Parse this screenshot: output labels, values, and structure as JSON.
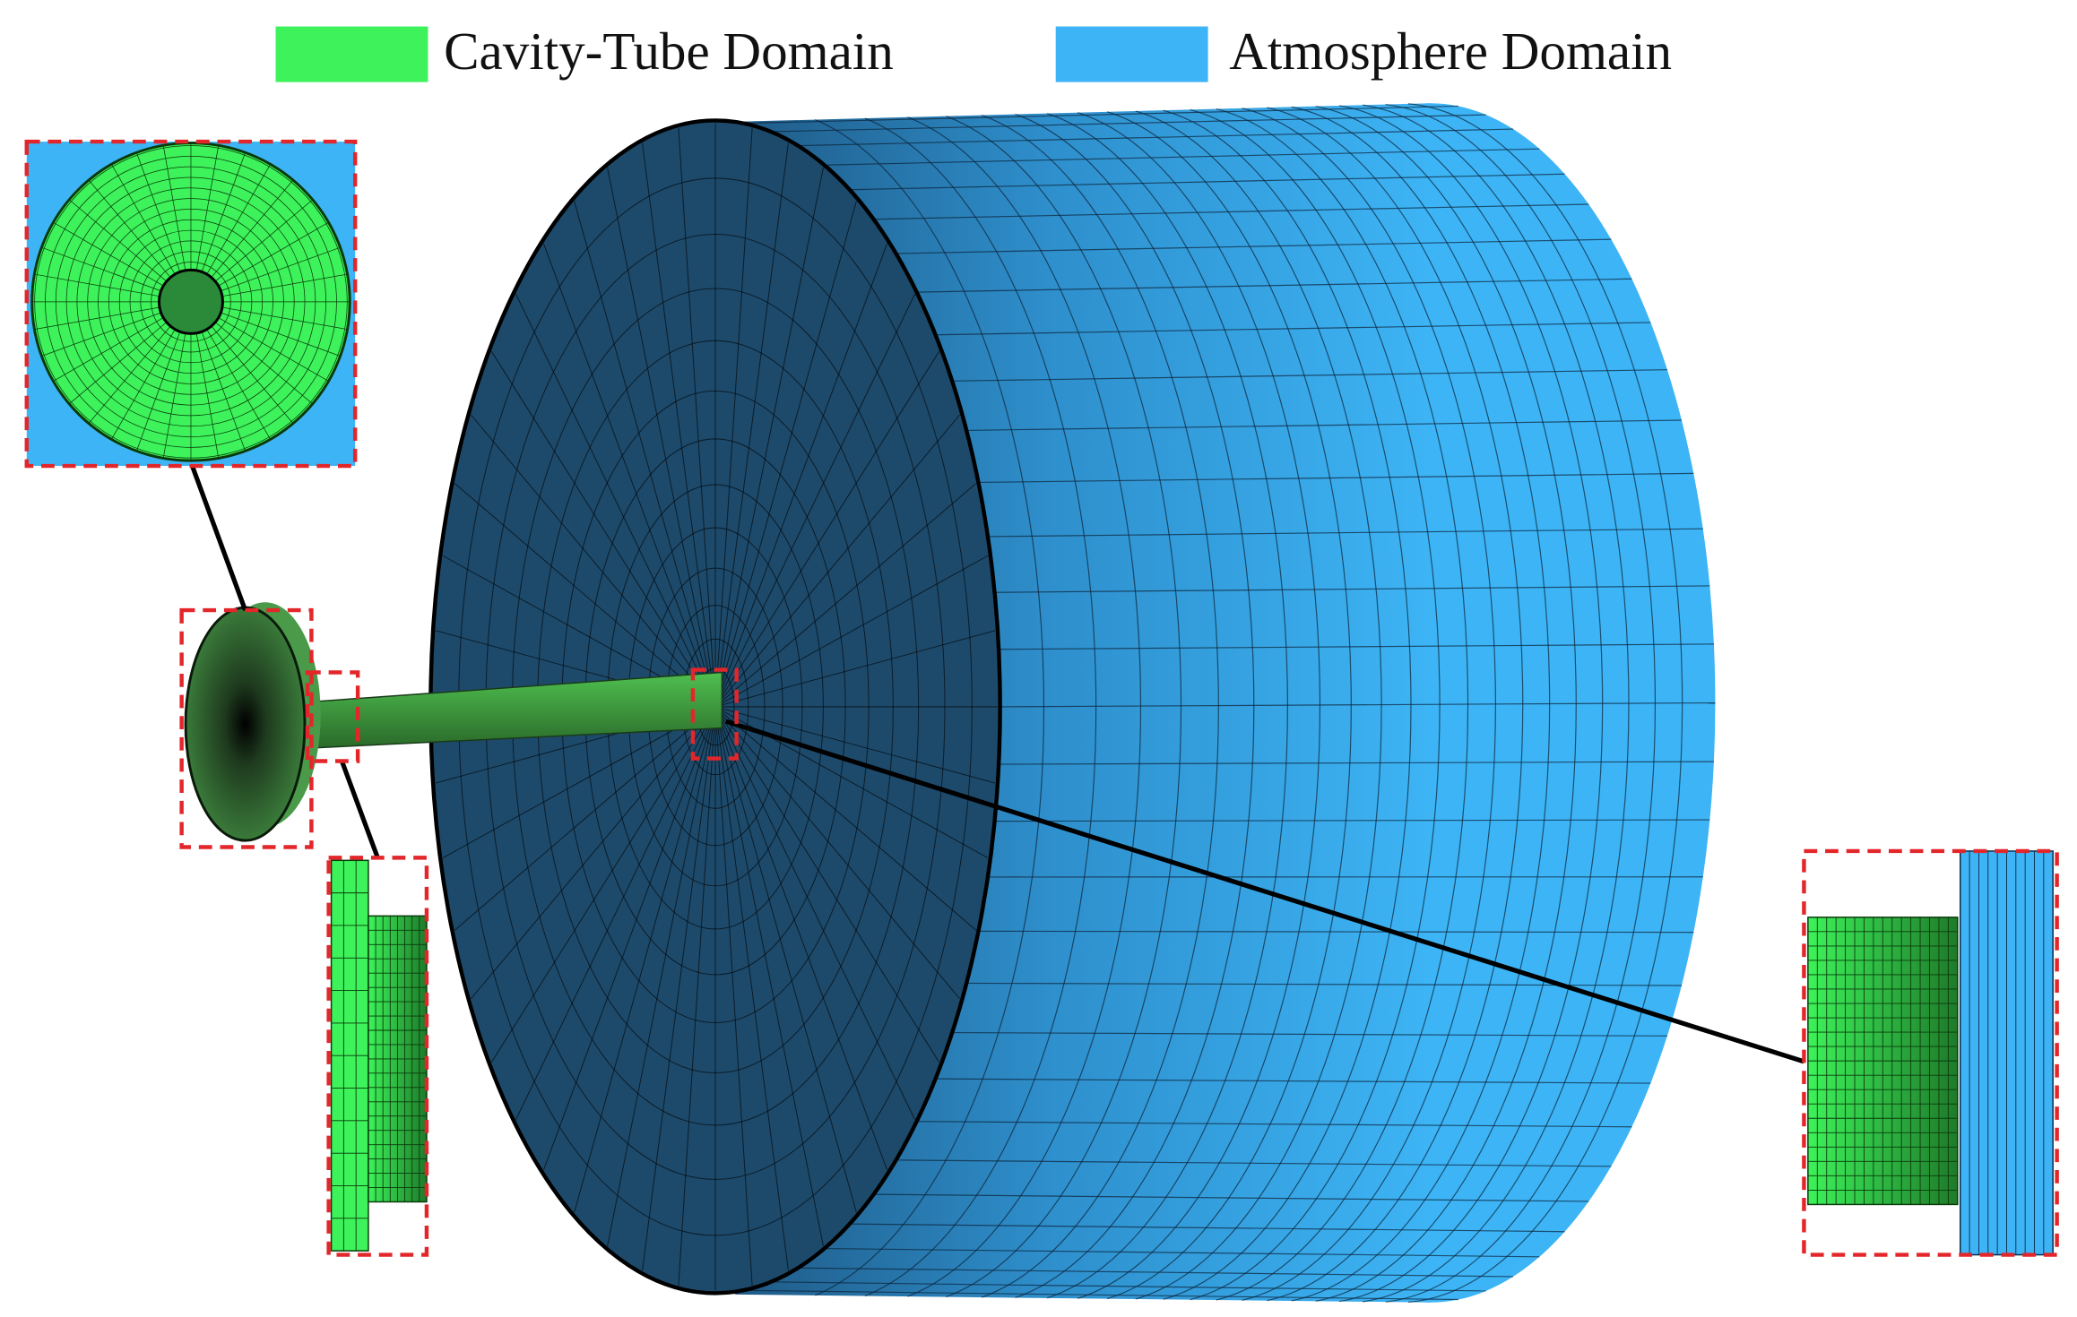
{
  "legend": {
    "items": [
      {
        "label": "Cavity-Tube Domain",
        "color": "#3df25a"
      },
      {
        "label": "Atmosphere Domain",
        "color": "#3db4f5"
      }
    ]
  }
}
